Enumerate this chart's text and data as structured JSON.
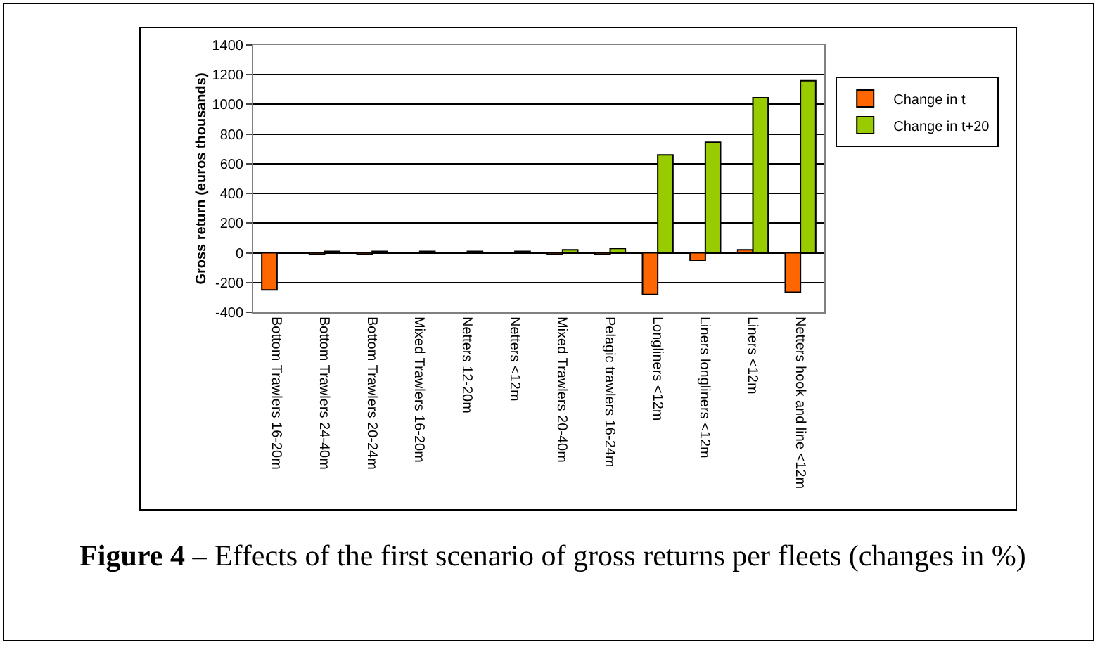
{
  "chart_data": {
    "type": "bar",
    "ylabel": "Gross return (euros thousands)",
    "categories": [
      "Bottom Trawlers 16-20m",
      "Bottom Trawlers 24-40m",
      "Bottom Trawlers 20-24m",
      "Mixed Trawlers 16-20m",
      "Netters 12-20m",
      "Netters <12m",
      "Mixed Trawlers 20-40m",
      "Pelagic trawlers 16-24m",
      "Longliners <12m",
      "Liners longliners <12m",
      "Liners <12m",
      "Netters hook and line <12m"
    ],
    "series": [
      {
        "name": "Change in t",
        "color": "#ff6600",
        "values": [
          -250,
          -10,
          -10,
          null,
          null,
          null,
          -10,
          -10,
          -280,
          -50,
          20,
          -265
        ]
      },
      {
        "name": "Change in t+20",
        "color": "#99cc00",
        "values": [
          null,
          10,
          10,
          10,
          10,
          10,
          20,
          30,
          660,
          745,
          1045,
          1160
        ]
      }
    ],
    "ylim": [
      -400,
      1400
    ],
    "yticks": [
      -400,
      -200,
      0,
      200,
      400,
      600,
      800,
      1000,
      1200,
      1400
    ],
    "grid": "y",
    "legend": "right",
    "annotations": [
      "Figure 4",
      "– Effects of the first scenario of gross returns per fleets (changes in %)"
    ]
  }
}
